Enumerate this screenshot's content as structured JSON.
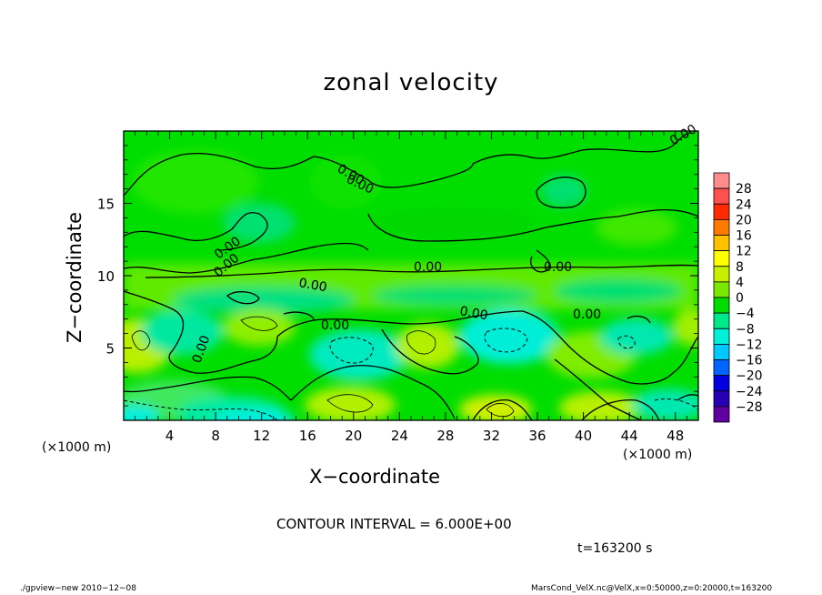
{
  "chart_data": {
    "type": "heatmap",
    "title": "zonal velocity",
    "xlabel": "X−coordinate",
    "ylabel": "Z−coordinate",
    "x_unit_label": "(×1000 m)",
    "x_ticks": [
      4,
      8,
      12,
      16,
      20,
      24,
      28,
      32,
      36,
      40,
      44,
      48
    ],
    "y_ticks": [
      5,
      10,
      15
    ],
    "xlim": [
      0,
      50
    ],
    "ylim": [
      0,
      20
    ],
    "colorbar_levels": [
      28,
      24,
      20,
      16,
      12,
      8,
      4,
      0,
      "−4",
      "−8",
      "−12",
      "−16",
      "−20",
      "−24",
      "−28"
    ],
    "colorbar_colors": [
      "#ff8c8c",
      "#ff5050",
      "#ff2a00",
      "#ff7a00",
      "#ffc000",
      "#ffff00",
      "#c6f000",
      "#7ae800",
      "#00dc00",
      "#00e88c",
      "#00f0d8",
      "#00c8ff",
      "#0064ff",
      "#0000e0",
      "#2800b4",
      "#6000a0"
    ],
    "contour_labels": [
      "0.00",
      "0.00",
      "0.00",
      "0.00",
      "0.00",
      "0.00",
      "0.00",
      "0.00",
      "0.00",
      "0.00",
      "0.00",
      "0.00"
    ],
    "contour_interval": "CONTOUR INTERVAL = 6.000E+00",
    "time_label": "t=163200 s"
  },
  "footer": {
    "left": "./gpview−new   2010−12−08",
    "right": "MarsCond_VelX.nc@VelX,x=0:50000,z=0:20000,t=163200"
  }
}
